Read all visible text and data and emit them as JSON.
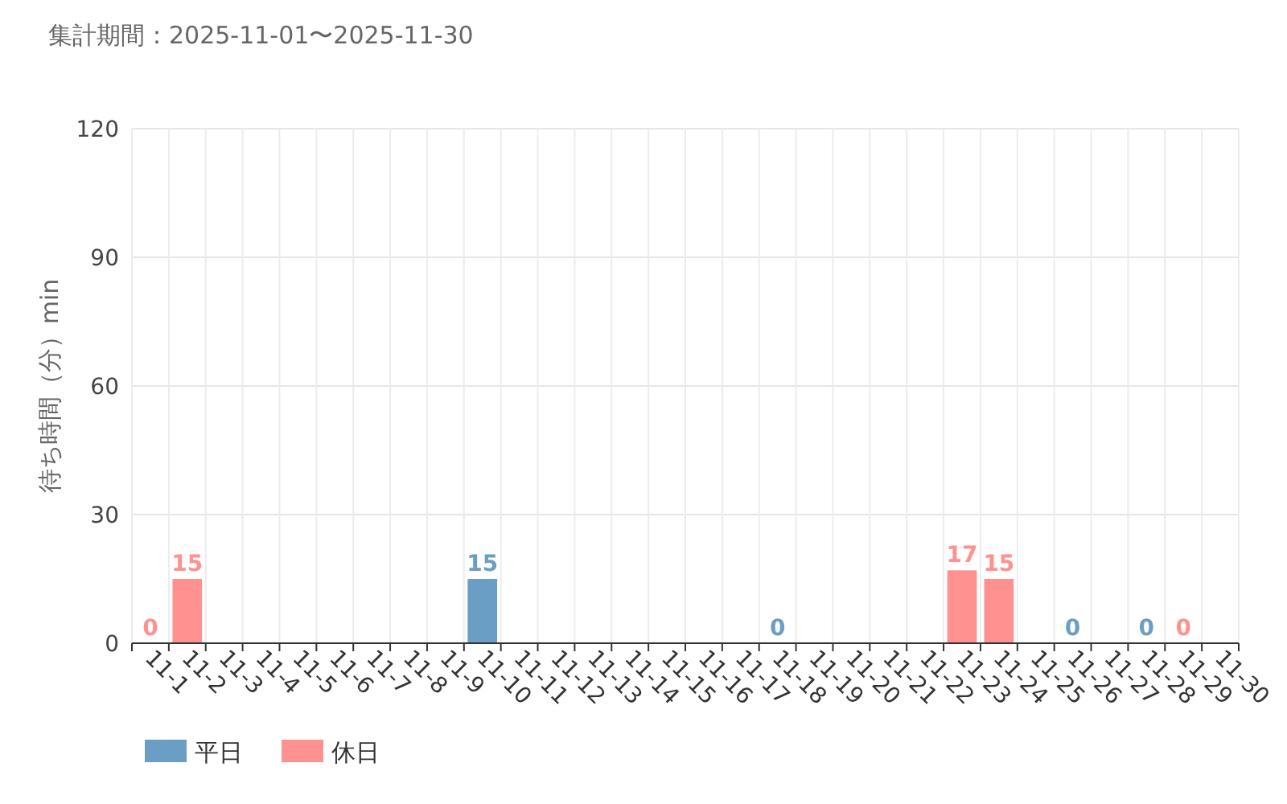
{
  "chart_data": {
    "type": "bar",
    "title": "集計期間：2025-11-01〜2025-11-30",
    "ylabel": "待ち時間（分）min",
    "categories": [
      "11-1",
      "11-2",
      "11-3",
      "11-4",
      "11-5",
      "11-6",
      "11-7",
      "11-8",
      "11-9",
      "11-10",
      "11-11",
      "11-12",
      "11-13",
      "11-14",
      "11-15",
      "11-16",
      "11-17",
      "11-18",
      "11-19",
      "11-20",
      "11-21",
      "11-22",
      "11-23",
      "11-24",
      "11-25",
      "11-26",
      "11-27",
      "11-28",
      "11-29",
      "11-30"
    ],
    "series": [
      {
        "name": "平日",
        "color": "#6a9ec5",
        "values": [
          null,
          null,
          null,
          null,
          null,
          null,
          null,
          null,
          null,
          15,
          null,
          null,
          null,
          null,
          null,
          null,
          null,
          0,
          null,
          null,
          null,
          null,
          null,
          null,
          null,
          0,
          null,
          0,
          null,
          null
        ]
      },
      {
        "name": "休日",
        "color": "#ff9191",
        "values": [
          0,
          15,
          null,
          null,
          null,
          null,
          null,
          null,
          null,
          null,
          null,
          null,
          null,
          null,
          null,
          null,
          null,
          null,
          null,
          null,
          null,
          null,
          17,
          15,
          null,
          null,
          null,
          null,
          0,
          null
        ]
      }
    ],
    "ylim": [
      0,
      120
    ],
    "yticks": [
      0,
      30,
      60,
      90,
      120
    ],
    "grid": true,
    "legend": "bottom left",
    "data_labels": true
  }
}
